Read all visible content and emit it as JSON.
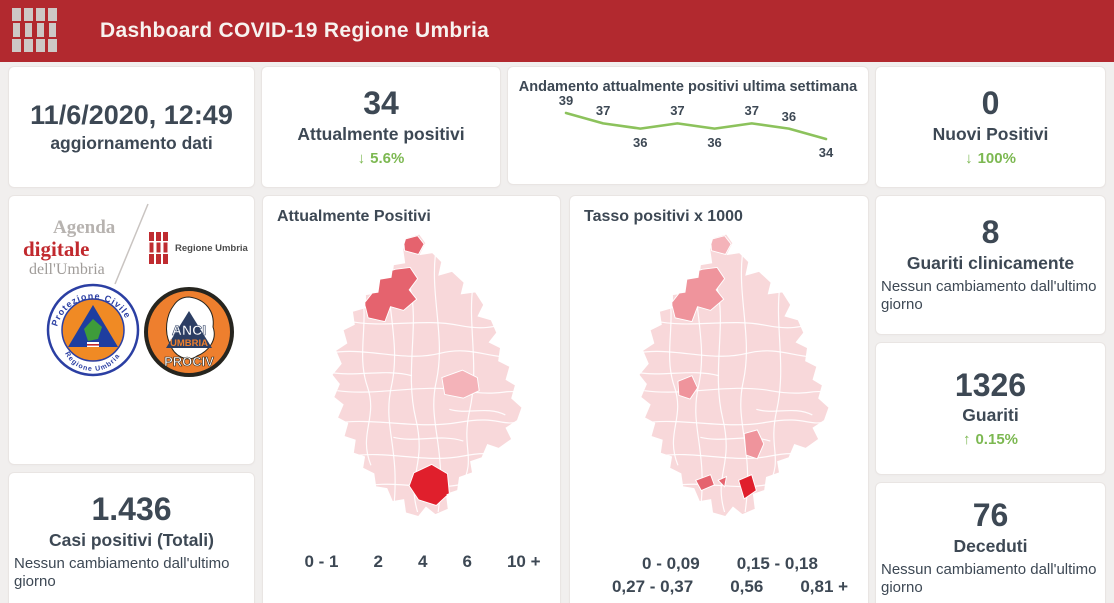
{
  "header": {
    "title": "Dashboard COVID-19 Regione Umbria"
  },
  "colors": {
    "header_bg": "#b2292f",
    "ink": "#3d4854",
    "green": "#7cb851",
    "card_border": "#e9e5e3",
    "page_bg": "#f1efee",
    "trend_line": "#8cc25c"
  },
  "map_colors": [
    "#f8d8da",
    "#f4b3b9",
    "#ef949c",
    "#e5636e",
    "#e01f2c"
  ],
  "cards": {
    "update": {
      "value": "11/6/2020, 12:49",
      "label": "aggiornamento dati"
    },
    "attualmente_positivi": {
      "value": "34",
      "label": "Attualmente positivi",
      "arrow": "↓",
      "change": "5.6%"
    },
    "nuovi_positivi": {
      "value": "0",
      "label": "Nuovi Positivi",
      "arrow": "↓",
      "change": "100%"
    },
    "guariti_clinicamente": {
      "value": "8",
      "label": "Guariti clinicamente",
      "note": "Nessun cambiamento dall'ultimo giorno"
    },
    "guariti": {
      "value": "1326",
      "label": "Guariti",
      "arrow": "↑",
      "change": "0.15%"
    },
    "deceduti": {
      "value": "76",
      "label": "Deceduti",
      "note": "Nessun cambiamento dall'ultimo giorno"
    },
    "casi_totali": {
      "value": "1.436",
      "label": "Casi positivi (Totali)",
      "note": "Nessun cambiamento dall'ultimo giorno"
    }
  },
  "chart_data": {
    "type": "line",
    "title": "Andamento attualmente positivi ultima settimana",
    "values": [
      39,
      37,
      36,
      37,
      36,
      37,
      36,
      34
    ],
    "label_positions": [
      "above",
      "above",
      "below",
      "above",
      "below",
      "above",
      "above",
      "below"
    ],
    "ylim": [
      33,
      40
    ],
    "line_color": "#8cc25c",
    "grid": false,
    "legend_position": "none"
  },
  "maps": [
    {
      "title": "Attualmente Positivi",
      "legend": [
        {
          "label": "0 - 1"
        },
        {
          "label": "2"
        },
        {
          "label": "4"
        },
        {
          "label": "6"
        },
        {
          "label": "10 +"
        }
      ]
    },
    {
      "title": "Tasso positivi x 1000",
      "legend": [
        {
          "label": "0 - 0,09"
        },
        {
          "label": "0,15 - 0,18"
        },
        {
          "label": "0,27 - 0,37"
        },
        {
          "label": "0,56"
        },
        {
          "label": "0,81 +"
        }
      ]
    }
  ],
  "logos": {
    "agenda": {
      "line1": "Agenda",
      "line2": "digitale",
      "line3": "dell'Umbria"
    },
    "regione_umbria": "Regione Umbria",
    "protezione_civile": {
      "top": "Protezione Civile",
      "bottom": "Regione Umbria"
    },
    "anci": {
      "line1": "ANCI",
      "line2": "UMBRIA",
      "line3": "PROCIV"
    }
  }
}
